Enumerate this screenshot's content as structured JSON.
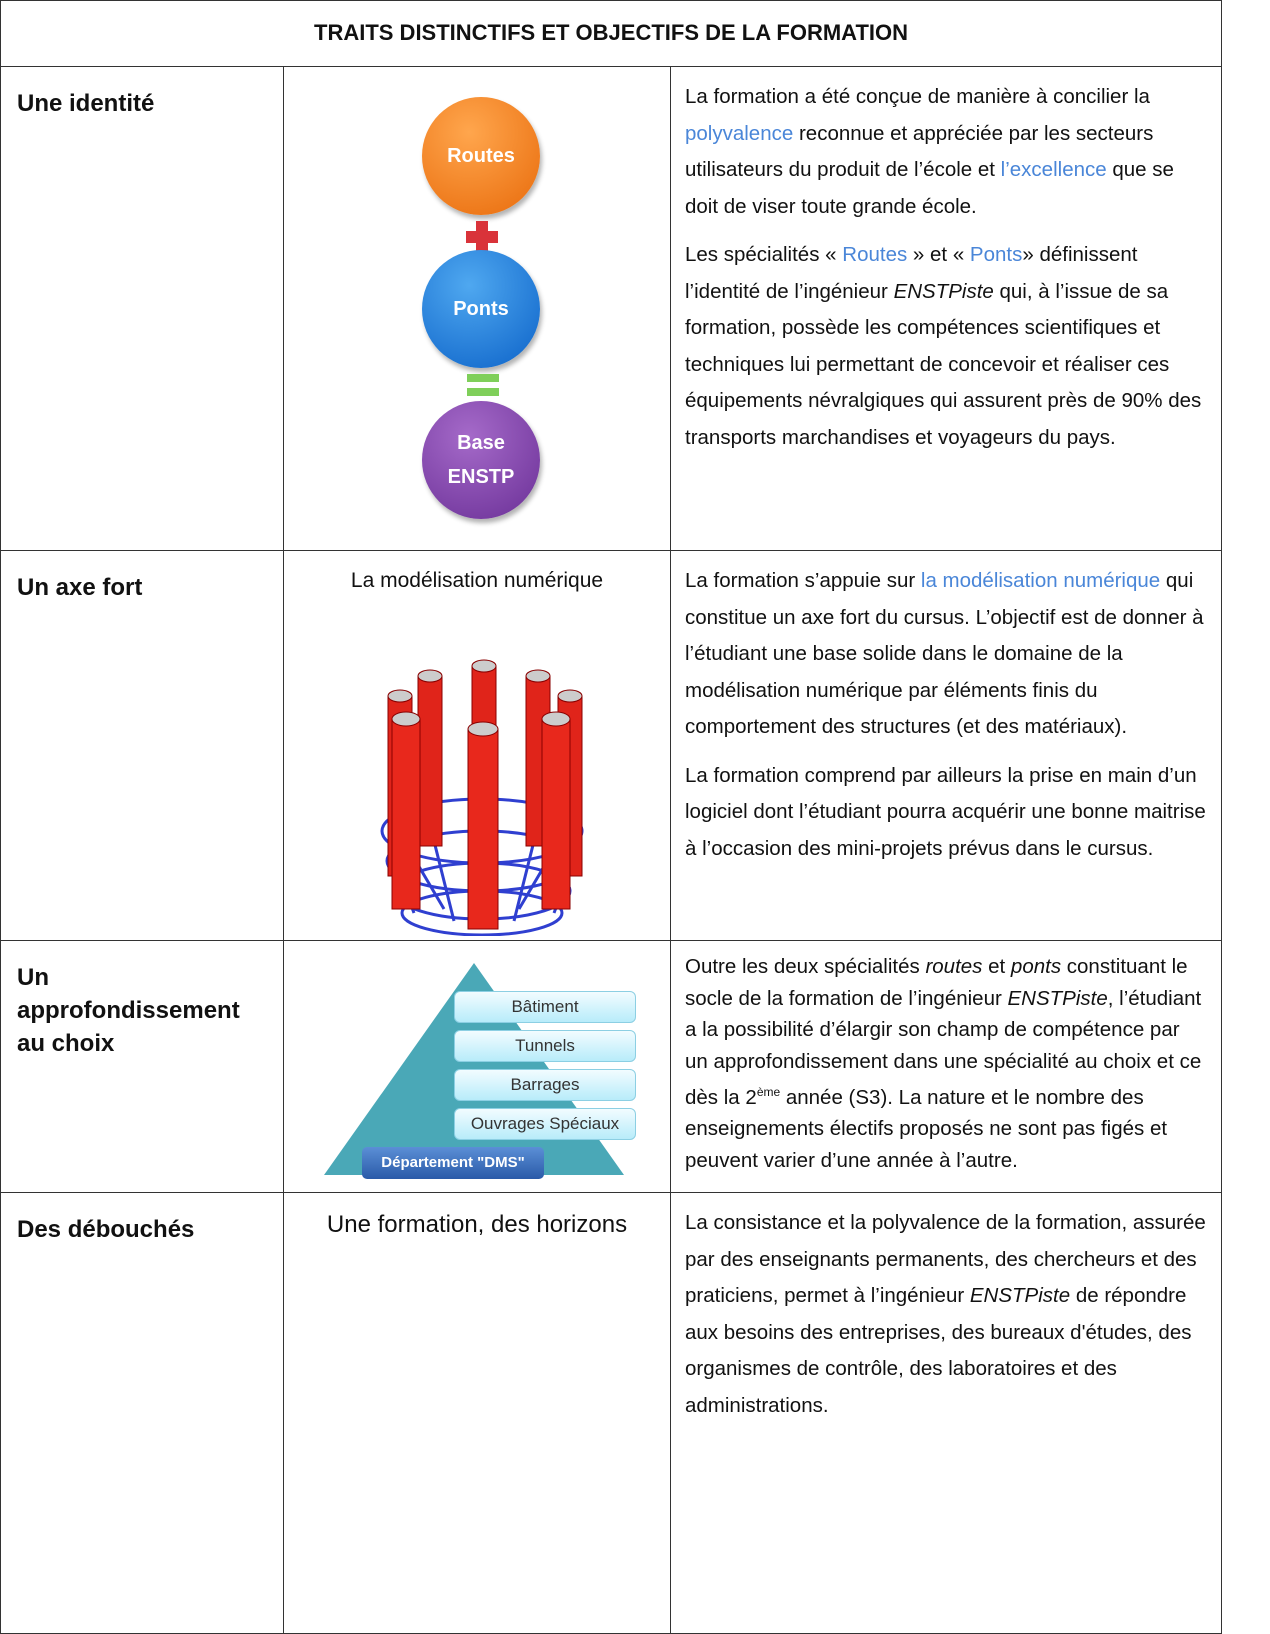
{
  "title": "TRAITS DISTINCTIFS ET OBJECTIFS DE LA FORMATION",
  "rows": [
    {
      "label": "Une identité",
      "diagram": [
        "Routes",
        "Ponts",
        "Base ENSTP"
      ],
      "paragraphs": [
        [
          "La formation a été conçue de manière à concilier la ",
          "polyvalence",
          " reconnue et appréciée par les secteurs utilisateurs du produit de l’école et ",
          "l’excellence",
          " que se doit de viser toute grande école."
        ],
        [
          "Les spécialités « ",
          "Routes",
          " » et « ",
          "Ponts",
          "» définissent l’identité de l’ingénieur ",
          "ENSTPiste",
          " qui, à l’issue de sa formation, possède les compétences scientifiques et techniques lui permettant de concevoir et réaliser ces équipements névralgiques qui assurent près de 90% des transports marchandises et voyageurs du pays."
        ]
      ]
    },
    {
      "label": "Un axe fort",
      "caption": "La modélisation numérique",
      "paragraphs": [
        [
          "La formation s’appuie sur ",
          "la modélisation numérique",
          " qui constitue un axe fort  du cursus. L’objectif est de donner à l’étudiant une base solide dans le domaine de la modélisation numérique par éléments finis du comportement des structures (et des matériaux)."
        ],
        [
          "La formation comprend par ailleurs la prise en main d’un logiciel dont l’étudiant pourra acquérir une bonne maitrise à l’occasion des mini-projets prévus dans le cursus."
        ]
      ]
    },
    {
      "label": "Un approfondissement au choix",
      "diagram": [
        "Bâtiment",
        "Tunnels",
        "Barrages",
        "Ouvrages Spéciaux"
      ],
      "base": "Département \"DMS\"",
      "paragraphs": [
        [
          "Outre les deux spécialités ",
          "routes",
          " et ",
          "ponts",
          " constituant le socle de la formation de l’ingénieur ",
          "ENSTPiste",
          ", l’étudiant a la possibilité d’élargir son champ de compétence par  un approfondissement dans une spécialité au choix et ce dès la 2",
          "ème",
          " année (S3). La nature et le nombre des enseignements électifs proposés ne sont pas figés et peuvent  varier d’une année à l’autre."
        ]
      ]
    },
    {
      "label": "Des débouchés",
      "caption": "Une formation, des horizons",
      "paragraphs": [
        [
          "La consistance et la polyvalence de la formation, assurée par des enseignants permanents, des chercheurs et des praticiens, permet à l’ingénieur  ",
          "ENSTPiste",
          "  de répondre aux besoins des entreprises, des bureaux d'études, des organismes de contrôle, des laboratoires  et des administrations."
        ]
      ]
    }
  ]
}
